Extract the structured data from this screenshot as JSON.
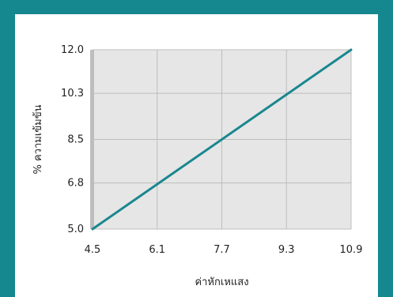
{
  "colors": {
    "frame": "#15878f",
    "card": "#ffffff",
    "plot_bg": "#e6e6e6",
    "grid": "#bdbdbd",
    "left_axis": "#bdbdbd",
    "line": "#1a878f"
  },
  "chart_data": {
    "type": "line",
    "title": "",
    "xlabel": "ค่าหักเหแสง",
    "ylabel": "% ความเข้มข้น",
    "x_ticks": [
      "4.5",
      "6.1",
      "7.7",
      "9.3",
      "10.9"
    ],
    "y_ticks": [
      "5.0",
      "6.8",
      "8.5",
      "10.3",
      "12.0"
    ],
    "xlim": [
      4.5,
      10.9
    ],
    "ylim": [
      5.0,
      12.0
    ],
    "grid": true,
    "legend": "none",
    "series": [
      {
        "x": [
          4.5,
          10.9
        ],
        "y": [
          5.0,
          12.0
        ]
      }
    ]
  }
}
